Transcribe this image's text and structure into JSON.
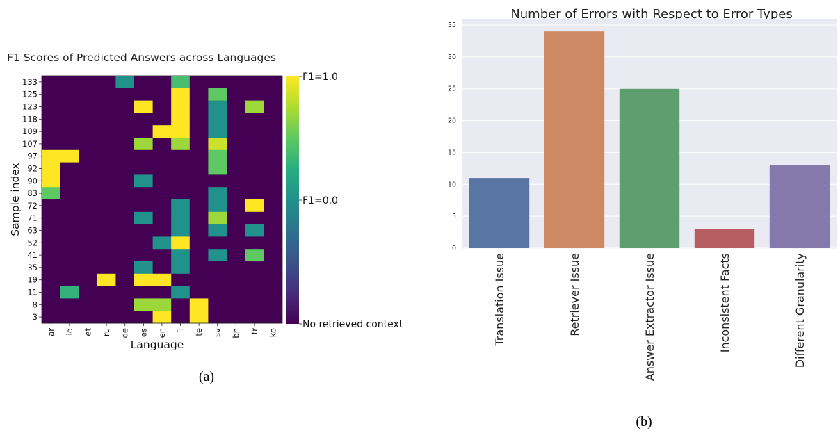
{
  "chart_data": [
    {
      "type": "heatmap",
      "title": "F1 Scores of Predicted Answers across Languages",
      "xlabel": "Language",
      "ylabel": "Sample index",
      "x_categories": [
        "ar",
        "id",
        "et",
        "ru",
        "de",
        "es",
        "en",
        "fi",
        "te",
        "sv",
        "bn",
        "tr",
        "ko"
      ],
      "y_categories": [
        "133",
        "125",
        "123",
        "118",
        "109",
        "107",
        "97",
        "92",
        "90",
        "83",
        "72",
        "71",
        "63",
        "52",
        "41",
        "35",
        "19",
        "11",
        "8",
        "3"
      ],
      "colorbar_labels": [
        "F1=1.0",
        "F1=0.0",
        "No retrieved context"
      ],
      "colormap": "viridis",
      "value_range": [
        -1,
        1
      ],
      "values": [
        [
          -1,
          -1,
          -1,
          -1,
          0,
          -1,
          -1,
          0.4,
          -1,
          -1,
          -1,
          -1,
          -1
        ],
        [
          -1,
          -1,
          -1,
          -1,
          -1,
          -1,
          -1,
          1,
          -1,
          0.5,
          -1,
          -1,
          -1
        ],
        [
          -1,
          -1,
          -1,
          -1,
          -1,
          1,
          -1,
          1,
          -1,
          0,
          -1,
          0.7,
          -1
        ],
        [
          -1,
          -1,
          -1,
          -1,
          -1,
          -1,
          -1,
          1,
          -1,
          0,
          -1,
          -1,
          -1
        ],
        [
          -1,
          -1,
          -1,
          -1,
          -1,
          -1,
          1,
          1,
          -1,
          0,
          -1,
          -1,
          -1
        ],
        [
          -1,
          -1,
          -1,
          -1,
          -1,
          0.7,
          -1,
          0.7,
          -1,
          0.85,
          -1,
          -1,
          -1
        ],
        [
          1,
          1,
          -1,
          -1,
          -1,
          -1,
          -1,
          -1,
          -1,
          0.5,
          -1,
          -1,
          -1
        ],
        [
          1,
          -1,
          -1,
          -1,
          -1,
          -1,
          -1,
          -1,
          -1,
          0.5,
          -1,
          -1,
          -1
        ],
        [
          1,
          -1,
          -1,
          -1,
          -1,
          0,
          -1,
          -1,
          -1,
          -1,
          -1,
          -1,
          -1
        ],
        [
          0.5,
          -1,
          -1,
          -1,
          -1,
          -1,
          -1,
          -1,
          -1,
          0,
          -1,
          -1,
          -1
        ],
        [
          -1,
          -1,
          -1,
          -1,
          -1,
          -1,
          -1,
          0,
          -1,
          0,
          -1,
          1,
          -1
        ],
        [
          -1,
          -1,
          -1,
          -1,
          -1,
          0,
          -1,
          0,
          -1,
          0.7,
          -1,
          -1,
          -1
        ],
        [
          -1,
          -1,
          -1,
          -1,
          -1,
          -1,
          -1,
          0,
          -1,
          0,
          -1,
          0,
          -1
        ],
        [
          -1,
          -1,
          -1,
          -1,
          -1,
          -1,
          0,
          1,
          -1,
          -1,
          -1,
          -1,
          -1
        ],
        [
          -1,
          -1,
          -1,
          -1,
          -1,
          -1,
          -1,
          0,
          -1,
          0,
          -1,
          0.5,
          -1
        ],
        [
          -1,
          -1,
          -1,
          -1,
          -1,
          0,
          -1,
          0,
          -1,
          -1,
          -1,
          -1,
          -1
        ],
        [
          -1,
          -1,
          -1,
          1,
          -1,
          1,
          1,
          -1,
          -1,
          -1,
          -1,
          -1,
          -1
        ],
        [
          -1,
          0.3,
          -1,
          -1,
          -1,
          -1,
          -1,
          0,
          -1,
          -1,
          -1,
          -1,
          -1
        ],
        [
          -1,
          -1,
          -1,
          -1,
          -1,
          0.7,
          0.7,
          -1,
          1,
          -1,
          -1,
          -1,
          -1
        ],
        [
          -1,
          -1,
          -1,
          -1,
          -1,
          -1,
          1,
          -1,
          1,
          -1,
          -1,
          -1,
          -1
        ]
      ],
      "caption": "(a)"
    },
    {
      "type": "bar",
      "title": "Number of Errors with Respect to Error Types",
      "categories": [
        "Translation Issue",
        "Retriever Issue",
        "Answer Extractor Issue",
        "Inconsistent Facts",
        "Different Granularity"
      ],
      "values": [
        11,
        34,
        25,
        3,
        13
      ],
      "colors": [
        "#5875a4",
        "#cc8963",
        "#5f9e6e",
        "#b55d60",
        "#857aab"
      ],
      "background": "#eaeaf2",
      "ylim": [
        0,
        35
      ],
      "yticks": [
        0,
        5,
        10,
        15,
        20,
        25,
        30,
        35
      ],
      "grid": true,
      "caption": "(b)"
    }
  ]
}
